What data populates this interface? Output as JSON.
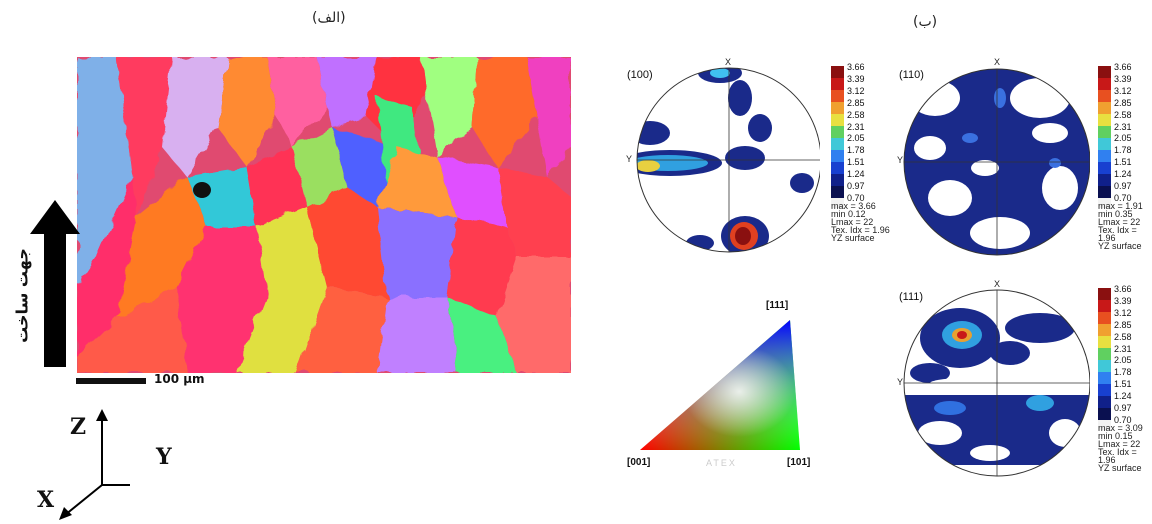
{
  "panels": {
    "a_label": "(الف)",
    "b_label": "(ب)"
  },
  "build_direction": "جهت ساخت",
  "scale_bar": "100 μm",
  "axes": {
    "z": "Z",
    "y": "Y",
    "x": "X"
  },
  "pole_figure_axes": {
    "x": "X",
    "y": "Y"
  },
  "colorbar_levels": [
    "3.66",
    "3.39",
    "3.12",
    "2.85",
    "2.58",
    "2.31",
    "2.05",
    "1.78",
    "1.51",
    "1.24",
    "0.97",
    "0.70"
  ],
  "colorbar_colors": [
    "#f2f2f2",
    "#8a1010",
    "#c81818",
    "#e85020",
    "#f0a030",
    "#e8e040",
    "#60d060",
    "#40c8d8",
    "#3080f0",
    "#1840d0",
    "#10208a",
    "#0a1050"
  ],
  "pole_figures": [
    {
      "title": "(100)",
      "stats": [
        "max = 3.66",
        "min  0.12",
        "Lmax = 22",
        "Tex. Idx = 1.96",
        "YZ surface"
      ]
    },
    {
      "title": "(110)",
      "stats": [
        "max = 1.91",
        "min  0.35",
        "Lmax = 22",
        "Tex. Idx = 1.96",
        "YZ surface"
      ]
    },
    {
      "title": "(111)",
      "stats": [
        "max = 3.09",
        "min  0.15",
        "Lmax = 22",
        "Tex. Idx = 1.96",
        "YZ surface"
      ]
    }
  ],
  "ipf_legend": {
    "top": "[111]",
    "left": "[001]",
    "right": "[101]",
    "watermark": "ATEX"
  }
}
